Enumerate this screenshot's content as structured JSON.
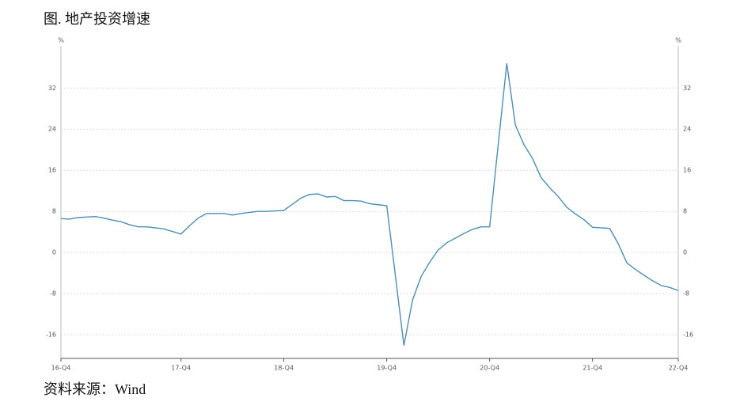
{
  "title": "图. 地产投资增速",
  "source": "资料来源：Wind",
  "chart_data": {
    "type": "line",
    "y_unit": "%",
    "categories": [
      "16-Q4",
      null,
      null,
      null,
      null,
      null,
      null,
      null,
      null,
      null,
      null,
      null,
      null,
      null,
      "17-Q4",
      null,
      null,
      null,
      null,
      null,
      null,
      null,
      null,
      null,
      null,
      null,
      "18-Q4",
      null,
      null,
      null,
      null,
      null,
      null,
      null,
      null,
      null,
      null,
      null,
      "19-Q4",
      null,
      null,
      null,
      null,
      null,
      null,
      null,
      null,
      null,
      null,
      null,
      "20-Q4",
      null,
      null,
      null,
      null,
      null,
      null,
      null,
      null,
      null,
      null,
      null,
      "21-Q4",
      null,
      null,
      null,
      null,
      null,
      null,
      null,
      null,
      null,
      "22-Q4"
    ],
    "series": [
      {
        "name": "地产投资增速",
        "color": "#4a8fb5",
        "values": [
          6.6,
          6.5,
          6.8,
          6.9,
          7.0,
          6.7,
          6.3,
          6.0,
          5.4,
          5.0,
          5.0,
          4.8,
          4.6,
          4.1,
          3.6,
          5.2,
          6.7,
          7.6,
          7.6,
          7.6,
          7.3,
          7.6,
          7.8,
          8.0,
          8.0,
          8.1,
          8.2,
          9.4,
          10.6,
          11.3,
          11.4,
          10.8,
          10.9,
          10.1,
          10.1,
          10.0,
          9.5,
          9.3,
          9.1,
          -4.4,
          -18.1,
          -9.3,
          -4.7,
          -1.9,
          0.5,
          1.9,
          2.8,
          3.7,
          4.5,
          5.0,
          5.0,
          21.0,
          36.8,
          24.8,
          21.0,
          18.3,
          14.6,
          12.6,
          10.9,
          8.8,
          7.5,
          6.4,
          4.9,
          4.8,
          4.7,
          1.7,
          -2.0,
          -3.3,
          -4.4,
          -5.5,
          -6.4,
          -6.8,
          -7.4
        ]
      }
    ],
    "ylim": [
      -20.6,
      40.2
    ],
    "yticks": [
      -16,
      -8,
      0,
      8,
      16,
      24,
      32
    ],
    "grid": true
  }
}
